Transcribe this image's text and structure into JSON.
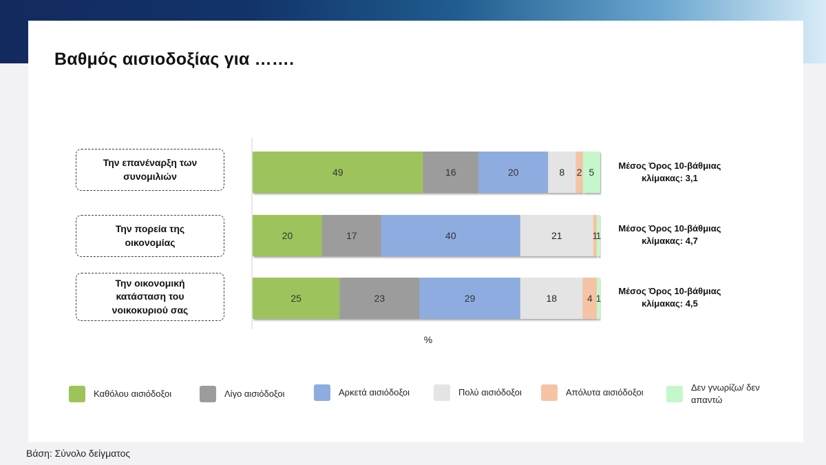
{
  "slide": {
    "title": "Βαθμός αισιοδοξίας για …….",
    "unit_label": "%",
    "footer": "Βάση: Σύνολο δείγματος"
  },
  "rows": [
    {
      "label_lines": [
        "Την επανέναρξη των",
        "συνομιλιών"
      ],
      "mean_lines": [
        "Μέσος Όρος 10-βάθμιας",
        "κλίμακας: 3,1"
      ]
    },
    {
      "label_lines": [
        "Την πορεία της",
        "οικονομίας"
      ],
      "mean_lines": [
        "Μέσος Όρος 10-βάθμιας",
        "κλίμακας: 4,7"
      ]
    },
    {
      "label_lines": [
        "Την οικονομική",
        "κατάσταση του",
        "νοικοκυριού σας"
      ],
      "mean_lines": [
        "Μέσος Όρος 10-βάθμιας",
        "κλίμακας: 4,5"
      ]
    }
  ],
  "legend": [
    {
      "label_lines": [
        "Καθόλου αισιόδοξοι"
      ]
    },
    {
      "label_lines": [
        "Λίγο αισιόδοξοι"
      ]
    },
    {
      "label_lines": [
        "Αρκετά αισιόδοξοι"
      ]
    },
    {
      "label_lines": [
        "Πολύ αισιόδοξοι"
      ]
    },
    {
      "label_lines": [
        "Απόλυτα αισιόδοξοι"
      ]
    },
    {
      "label_lines": [
        "Δεν γνωρίζω/ δεν",
        "απαντώ"
      ]
    }
  ],
  "chart_data": {
    "type": "bar",
    "orientation": "horizontal",
    "stacked": true,
    "categories": [
      "Την επανέναρξη των συνομιλιών",
      "Την πορεία της οικονομίας",
      "Την οικονομική κατάσταση του νοικοκυριού σας"
    ],
    "series": [
      {
        "name": "Καθόλου αισιόδοξοι",
        "values": [
          49,
          20,
          25
        ],
        "color": "#9dc45b"
      },
      {
        "name": "Λίγο αισιόδοξοι",
        "values": [
          16,
          17,
          23
        ],
        "color": "#9c9c9c"
      },
      {
        "name": "Αρκετά αισιόδοξοι",
        "values": [
          20,
          40,
          29
        ],
        "color": "#8eacdf"
      },
      {
        "name": "Πολύ αισιόδοξοι",
        "values": [
          8,
          21,
          18
        ],
        "color": "#e4e4e4"
      },
      {
        "name": "Απόλυτα αισιόδοξοι",
        "values": [
          2,
          1,
          4
        ],
        "color": "#f6c3a4"
      },
      {
        "name": "Δεν γνωρίζω/ δεν απαντώ",
        "values": [
          5,
          1,
          1
        ],
        "color": "#c6f7cc"
      }
    ],
    "xlabel": "%",
    "legend_position": "bottom",
    "grid": false
  }
}
